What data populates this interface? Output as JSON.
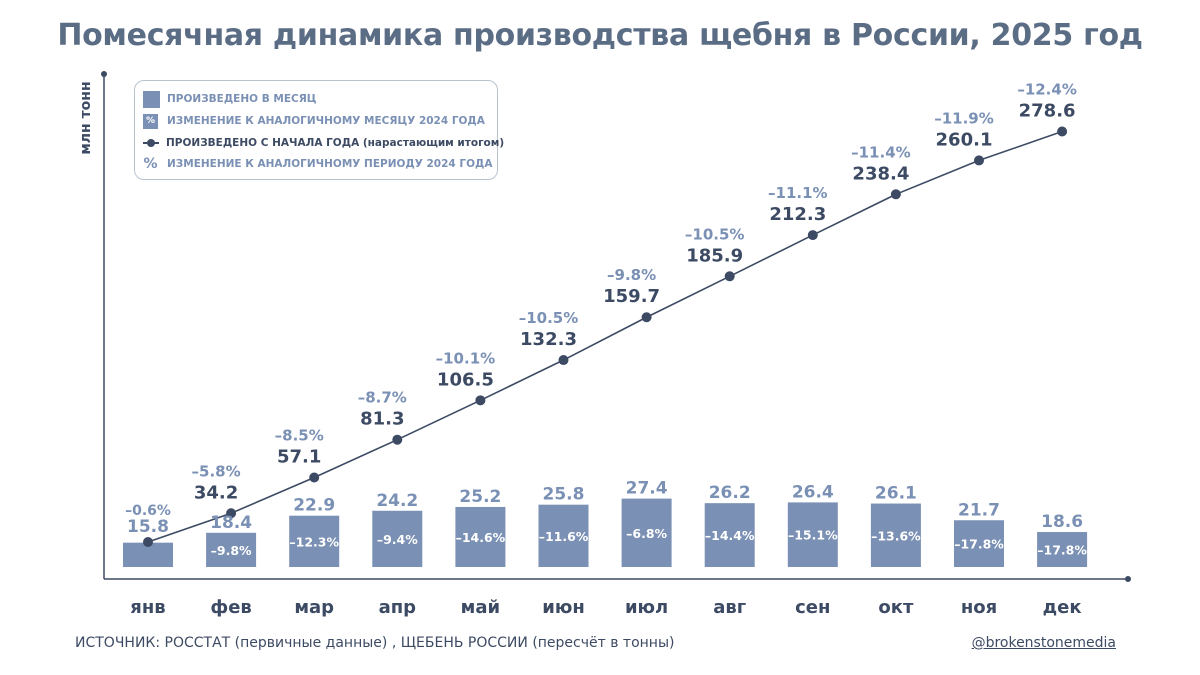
{
  "chart_data": {
    "type": "bar+line",
    "title": "Помесячная динамика производства щебня в России, 2025 год",
    "ylabel": "млн тонн",
    "ylim": [
      0,
      300
    ],
    "categories": [
      "янв",
      "фев",
      "мар",
      "апр",
      "май",
      "июн",
      "июл",
      "авг",
      "сен",
      "окт",
      "ноя",
      "дек"
    ],
    "series": [
      {
        "name": "ПРОИЗВЕДЕНО В МЕСЯЦ",
        "type": "bar",
        "values": [
          15.8,
          18.4,
          22.9,
          24.2,
          25.2,
          25.8,
          27.4,
          26.2,
          26.4,
          26.1,
          21.7,
          18.6
        ],
        "labels": [
          "15.8",
          "18.4",
          "22.9",
          "24.2",
          "25.2",
          "25.8",
          "27.4",
          "26.2",
          "26.4",
          "26.1",
          "21.7",
          "18.6"
        ],
        "change_labels": [
          "–0.6%",
          "–9.8%",
          "–12.3%",
          "–9.4%",
          "–14.6%",
          "–11.6%",
          "–6.8%",
          "–14.4%",
          "–15.1%",
          "–13.6%",
          "–17.8%",
          "–17.8%"
        ]
      },
      {
        "name": "ПРОИЗВЕДЕНО С НАЧАЛА ГОДА (нарастающим итогом)",
        "type": "line",
        "values": [
          15.8,
          34.2,
          57.1,
          81.3,
          106.5,
          132.3,
          159.7,
          185.9,
          212.3,
          238.4,
          260.1,
          278.6
        ],
        "labels": [
          "",
          "34.2",
          "57.1",
          "81.3",
          "106.5",
          "132.3",
          "159.7",
          "185.9",
          "212.3",
          "238.4",
          "260.1",
          "278.6"
        ],
        "change_labels": [
          "",
          "–5.8%",
          "–8.5%",
          "–8.7%",
          "–10.1%",
          "–10.5%",
          "–9.8%",
          "–10.5%",
          "–11.1%",
          "–11.4%",
          "–11.9%",
          "–12.4%"
        ]
      }
    ],
    "legend": {
      "position": "top-left",
      "items": [
        {
          "symbol": "",
          "label": "ПРОИЗВЕДЕНО В МЕСЯЦ"
        },
        {
          "symbol": "%",
          "label": "ИЗМЕНЕНИЕ К АНАЛОГИЧНОМУ МЕСЯЦУ 2024 ГОДА"
        },
        {
          "symbol": "",
          "label": "ПРОИЗВЕДЕНО С НАЧАЛА ГОДА (нарастающим итогом)"
        },
        {
          "symbol": "%",
          "label": "ИЗМЕНЕНИЕ К АНАЛОГИЧНОМУ ПЕРИОДУ 2024 ГОДА"
        }
      ]
    },
    "colors": {
      "bar": "#7a90b4",
      "line": "#3c4a63",
      "axis": "#3c4a63",
      "title": "#5b6d85"
    }
  },
  "footer": {
    "source": "ИСТОЧНИК: РОССТАТ (первичные данные) , ЩЕБЕНЬ РОССИИ (пересчёт в тонны)",
    "handle": "@brokenstonemedia"
  }
}
